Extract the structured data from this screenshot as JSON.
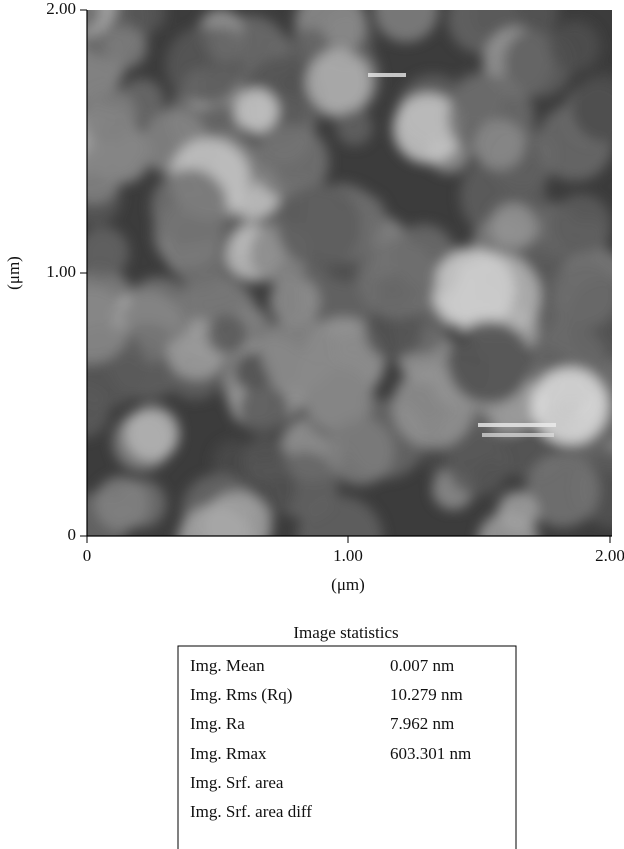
{
  "figure": {
    "y_axis": {
      "label": "(μm)",
      "ticks": [
        "0",
        "1.00",
        "2.00"
      ]
    },
    "x_axis": {
      "label": "(μm)",
      "ticks": [
        "0",
        "1.00",
        "2.00"
      ]
    }
  },
  "statistics": {
    "title": "Image statistics",
    "rows": [
      [
        "Img. Mean",
        "0.007 nm"
      ],
      [
        "Img. Rms (Rq)",
        "10.279 nm"
      ],
      [
        "Img. Ra",
        "7.962 nm"
      ],
      [
        "Img. Rmax",
        "603.301 nm"
      ],
      [
        "Img. Srf. area"
      ],
      [
        "Img. Srf. area diff"
      ]
    ]
  }
}
